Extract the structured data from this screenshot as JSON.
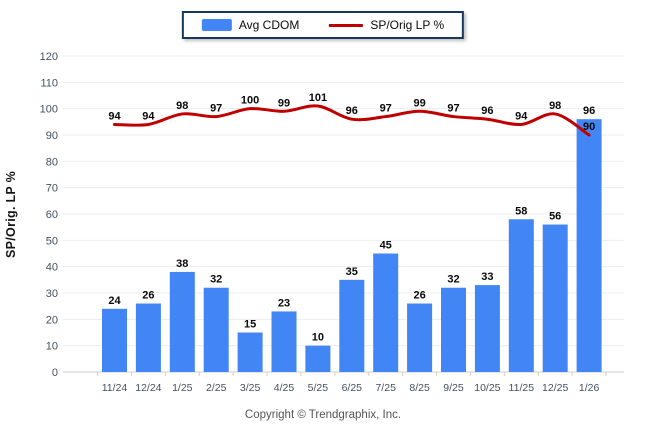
{
  "footer": {
    "copyright": "Copyright © Trendgraphix, Inc."
  },
  "colors": {
    "bar": "#4285F4",
    "line": "#C00000",
    "grid": "#ededed",
    "axis": "#cfcfcf",
    "tick_label": "#44505E",
    "value_label": "#0a0a0a",
    "legend_border": "#17375D"
  },
  "chart_data": {
    "type": "bar",
    "title": "",
    "categories": [
      "11/24",
      "12/24",
      "1/25",
      "2/25",
      "3/25",
      "4/25",
      "5/25",
      "6/25",
      "7/25",
      "8/25",
      "9/25",
      "10/25",
      "11/25",
      "12/25",
      "1/26"
    ],
    "series": [
      {
        "name": "Avg CDOM",
        "type": "bar",
        "color": "#4285F4",
        "values": [
          24,
          26,
          38,
          32,
          15,
          23,
          10,
          35,
          45,
          26,
          32,
          33,
          58,
          56,
          96
        ]
      },
      {
        "name": "SP/Orig LP %",
        "type": "line",
        "color": "#C00000",
        "values": [
          94,
          94,
          98,
          97,
          100,
          99,
          101,
          96,
          97,
          99,
          97,
          96,
          94,
          98,
          90
        ]
      }
    ],
    "xlabel": "",
    "ylabel": "SP/Orig. LP %",
    "ylim": [
      0,
      120
    ],
    "ytick_step": 10,
    "grid": true,
    "legend_position": "top"
  }
}
